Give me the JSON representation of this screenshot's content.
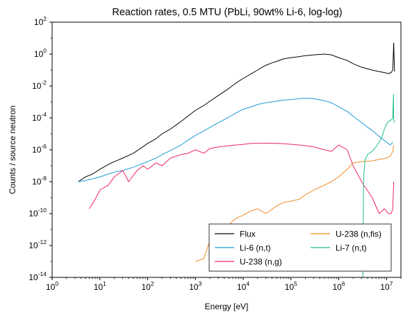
{
  "chart_data": {
    "type": "line",
    "title": "Reaction rates, 0.5 MTU (PbLi, 90wt% Li-6, log-log)",
    "xlabel": "Energy [eV]",
    "ylabel": "Counts / source neutron",
    "xscale": "log",
    "yscale": "log",
    "xlim": [
      1,
      20000000
    ],
    "ylim": [
      1e-14,
      100
    ],
    "xticks": [
      {
        "base": "10",
        "exp": "0",
        "value": 1
      },
      {
        "base": "10",
        "exp": "1",
        "value": 10
      },
      {
        "base": "10",
        "exp": "2",
        "value": 100
      },
      {
        "base": "10",
        "exp": "3",
        "value": 1000
      },
      {
        "base": "10",
        "exp": "4",
        "value": 10000
      },
      {
        "base": "10",
        "exp": "5",
        "value": 100000
      },
      {
        "base": "10",
        "exp": "6",
        "value": 1000000
      },
      {
        "base": "10",
        "exp": "7",
        "value": 10000000
      }
    ],
    "yticks": [
      {
        "base": "10",
        "exp": "-14",
        "value": 1e-14
      },
      {
        "base": "10",
        "exp": "-12",
        "value": 1e-12
      },
      {
        "base": "10",
        "exp": "-10",
        "value": 1e-10
      },
      {
        "base": "10",
        "exp": "-8",
        "value": 1e-08
      },
      {
        "base": "10",
        "exp": "-6",
        "value": 1e-06
      },
      {
        "base": "10",
        "exp": "-4",
        "value": 0.0001
      },
      {
        "base": "10",
        "exp": "-2",
        "value": 0.01
      },
      {
        "base": "10",
        "exp": "0",
        "value": 1
      },
      {
        "base": "10",
        "exp": "2",
        "value": 100
      }
    ],
    "grid": false,
    "legend": {
      "position": "lower-right",
      "columns": 2
    },
    "series": [
      {
        "name": "Flux",
        "color": "#000000",
        "x": [
          3.5,
          5,
          7,
          10,
          15,
          20,
          30,
          50,
          70,
          100,
          150,
          200,
          300,
          500,
          700,
          1000,
          1500,
          2000,
          3000,
          5000,
          7000,
          10000,
          15000,
          20000,
          25000,
          30000,
          40000,
          50000,
          70000,
          100000,
          150000,
          200000,
          300000,
          500000,
          700000,
          1000000,
          1500000,
          2000000,
          3000000,
          5000000,
          7000000,
          9000000,
          11000000,
          12500000,
          13500000,
          14100000,
          14700000
        ],
        "y": [
          1e-08,
          2e-08,
          3e-08,
          6e-08,
          1.2e-07,
          1.8e-07,
          3e-07,
          6e-07,
          1.2e-06,
          2.5e-06,
          5e-06,
          1e-05,
          2e-05,
          6e-05,
          0.00013,
          0.0003,
          0.0006,
          0.0011,
          0.0025,
          0.007,
          0.015,
          0.03,
          0.06,
          0.1,
          0.15,
          0.2,
          0.28,
          0.35,
          0.5,
          0.6,
          0.7,
          0.8,
          0.9,
          1.0,
          0.9,
          0.6,
          0.4,
          0.25,
          0.15,
          0.1,
          0.08,
          0.07,
          0.06,
          0.07,
          0.1,
          5.0,
          0.08
        ]
      },
      {
        "name": "Li-6 (n,t)",
        "color": "#1a9ad6",
        "x": [
          3.5,
          5,
          7,
          10,
          15,
          20,
          30,
          50,
          70,
          100,
          150,
          200,
          300,
          500,
          700,
          1000,
          1500,
          2000,
          3000,
          5000,
          7000,
          10000,
          15000,
          20000,
          30000,
          50000,
          70000,
          100000,
          150000,
          200000,
          300000,
          500000,
          700000,
          1000000,
          1500000,
          2000000,
          3000000,
          5000000,
          7000000,
          10000000,
          12000000,
          13500000
        ],
        "y": [
          1e-08,
          1.2e-08,
          1.5e-08,
          2e-08,
          3e-08,
          4e-08,
          5e-08,
          8e-08,
          1.2e-07,
          1.8e-07,
          3e-07,
          5e-07,
          9e-07,
          2e-06,
          4e-06,
          8e-06,
          1.5e-05,
          2.5e-05,
          5e-05,
          0.00011,
          0.0002,
          0.00035,
          0.0005,
          0.0007,
          0.0009,
          0.0011,
          0.0013,
          0.0014,
          0.0016,
          0.0017,
          0.0016,
          0.0012,
          0.0009,
          0.0005,
          0.00025,
          0.00013,
          5e-05,
          1.6e-05,
          7e-06,
          3e-06,
          2e-06,
          3e-06
        ]
      },
      {
        "name": "U-238 (n,g)",
        "color": "#f0265e",
        "x": [
          6,
          8,
          10,
          15,
          20,
          30,
          40,
          60,
          80,
          100,
          150,
          200,
          300,
          500,
          700,
          1000,
          1500,
          2000,
          3000,
          5000,
          7000,
          10000,
          15000,
          20000,
          30000,
          50000,
          70000,
          100000,
          150000,
          200000,
          300000,
          500000,
          700000,
          1000000,
          1500000,
          2000000,
          3000000,
          5000000,
          7000000,
          9000000,
          11000000,
          12500000,
          13500000,
          14100000
        ],
        "y": [
          2e-10,
          8e-10,
          3e-09,
          6e-09,
          2e-08,
          5e-08,
          1e-08,
          5e-08,
          1e-07,
          6e-08,
          1.5e-07,
          1e-07,
          3e-07,
          5e-07,
          6e-07,
          1e-06,
          6e-07,
          1.2e-06,
          1.5e-06,
          1.8e-06,
          2e-06,
          2.2e-06,
          2.5e-06,
          2.5e-06,
          2.6e-06,
          2.5e-06,
          2.4e-06,
          2.2e-06,
          2e-06,
          1.8e-06,
          1.5e-06,
          1e-06,
          8e-07,
          2e-06,
          1e-06,
          1e-07,
          1e-08,
          1e-09,
          1e-10,
          2e-10,
          1e-10,
          1e-10,
          2e-10,
          1e-08
        ]
      },
      {
        "name": "U-238 (n,fis)",
        "color": "#f08a24",
        "x": [
          1000,
          1500,
          2000,
          3000,
          5000,
          7000,
          10000,
          15000,
          20000,
          30000,
          50000,
          70000,
          100000,
          150000,
          200000,
          300000,
          500000,
          700000,
          1000000,
          1500000,
          2000000,
          3000000,
          5000000,
          7000000,
          10000000,
          12000000,
          13500000,
          14100000
        ],
        "y": [
          1e-13,
          1.5e-13,
          2e-12,
          1e-12,
          2e-11,
          5e-11,
          8e-11,
          1.5e-10,
          2e-10,
          1e-10,
          3e-10,
          5e-10,
          6e-10,
          8e-10,
          1.5e-09,
          3e-09,
          6e-09,
          1e-08,
          2e-08,
          6e-08,
          1.5e-07,
          1.8e-07,
          2e-07,
          2.5e-07,
          3e-07,
          4e-07,
          8e-07,
          2e-06
        ]
      },
      {
        "name": "Li-7 (n,t)",
        "color": "#1bbd8a",
        "x": [
          3200000,
          3300000,
          3500000,
          4000000,
          5000000,
          6000000,
          7000000,
          8000000,
          9000000,
          10000000,
          11000000,
          12000000,
          13000000,
          13500000,
          14000000,
          14100000,
          14500000
        ],
        "y": [
          1e-14,
          1e-08,
          2e-07,
          5e-07,
          8e-07,
          1.5e-06,
          3e-06,
          6e-06,
          2e-05,
          4e-05,
          6e-05,
          7e-05,
          8e-05,
          0.0001,
          0.003,
          0.0001,
          5e-05
        ]
      }
    ]
  }
}
